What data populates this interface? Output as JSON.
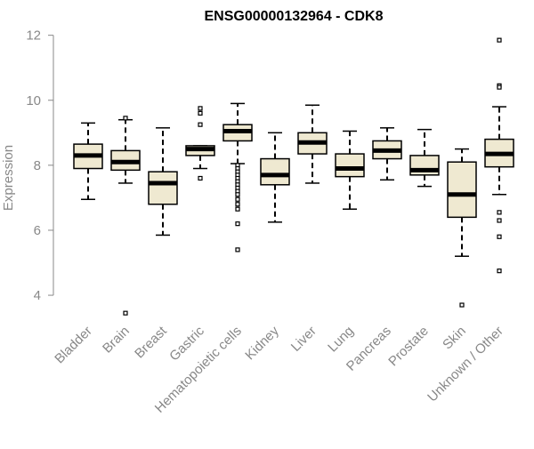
{
  "chart_data": {
    "type": "box",
    "title": "ENSG00000132964 - CDK8",
    "xlabel": "",
    "ylabel": "Expression",
    "ylim": [
      3.4,
      12.1
    ],
    "yticks": [
      4,
      6,
      8,
      10,
      12
    ],
    "grid": false,
    "colors": {
      "box_fill": "#efe9d1",
      "box_stroke": "#000000",
      "axis": "#888888",
      "title": "#000000"
    },
    "categories": [
      "Bladder",
      "Brain",
      "Breast",
      "Gastric",
      "Hematopoietic cells",
      "Kidney",
      "Liver",
      "Lung",
      "Pancreas",
      "Prostate",
      "Skin",
      "Unknown / Other"
    ],
    "boxes": [
      {
        "category": "Bladder",
        "whisker_low": 6.95,
        "q1": 7.9,
        "median": 8.3,
        "q3": 8.65,
        "whisker_high": 9.3,
        "outliers": []
      },
      {
        "category": "Brain",
        "whisker_low": 7.45,
        "q1": 7.85,
        "median": 8.1,
        "q3": 8.45,
        "whisker_high": 9.4,
        "outliers": [
          9.45,
          3.45
        ]
      },
      {
        "category": "Breast",
        "whisker_low": 5.85,
        "q1": 6.8,
        "median": 7.45,
        "q3": 7.8,
        "whisker_high": 9.15,
        "outliers": []
      },
      {
        "category": "Gastric",
        "whisker_low": 7.9,
        "q1": 8.3,
        "median": 8.5,
        "q3": 8.6,
        "whisker_high": 8.6,
        "outliers": [
          9.75,
          9.6,
          9.25,
          7.6
        ]
      },
      {
        "category": "Hematopoietic cells",
        "whisker_low": 8.05,
        "q1": 8.75,
        "median": 9.05,
        "q3": 9.25,
        "whisker_high": 9.9,
        "outliers": [
          8.0,
          7.9,
          7.8,
          7.7,
          7.6,
          7.5,
          7.4,
          7.3,
          7.2,
          7.1,
          6.95,
          6.8,
          6.65,
          6.2,
          5.4
        ]
      },
      {
        "category": "Kidney",
        "whisker_low": 6.25,
        "q1": 7.4,
        "median": 7.7,
        "q3": 8.2,
        "whisker_high": 9.0,
        "outliers": []
      },
      {
        "category": "Liver",
        "whisker_low": 7.45,
        "q1": 8.35,
        "median": 8.7,
        "q3": 9.0,
        "whisker_high": 9.85,
        "outliers": []
      },
      {
        "category": "Lung",
        "whisker_low": 6.65,
        "q1": 7.65,
        "median": 7.9,
        "q3": 8.35,
        "whisker_high": 9.05,
        "outliers": []
      },
      {
        "category": "Pancreas",
        "whisker_low": 7.55,
        "q1": 8.2,
        "median": 8.45,
        "q3": 8.75,
        "whisker_high": 9.15,
        "outliers": []
      },
      {
        "category": "Prostate",
        "whisker_low": 7.35,
        "q1": 7.7,
        "median": 7.85,
        "q3": 8.3,
        "whisker_high": 9.1,
        "outliers": []
      },
      {
        "category": "Skin",
        "whisker_low": 5.2,
        "q1": 6.4,
        "median": 7.1,
        "q3": 8.1,
        "whisker_high": 8.5,
        "outliers": [
          3.7
        ]
      },
      {
        "category": "Unknown / Other",
        "whisker_low": 7.1,
        "q1": 7.95,
        "median": 8.35,
        "q3": 8.8,
        "whisker_high": 9.8,
        "outliers": [
          11.85,
          10.45,
          10.4,
          6.55,
          6.3,
          5.8,
          4.75
        ]
      }
    ]
  }
}
